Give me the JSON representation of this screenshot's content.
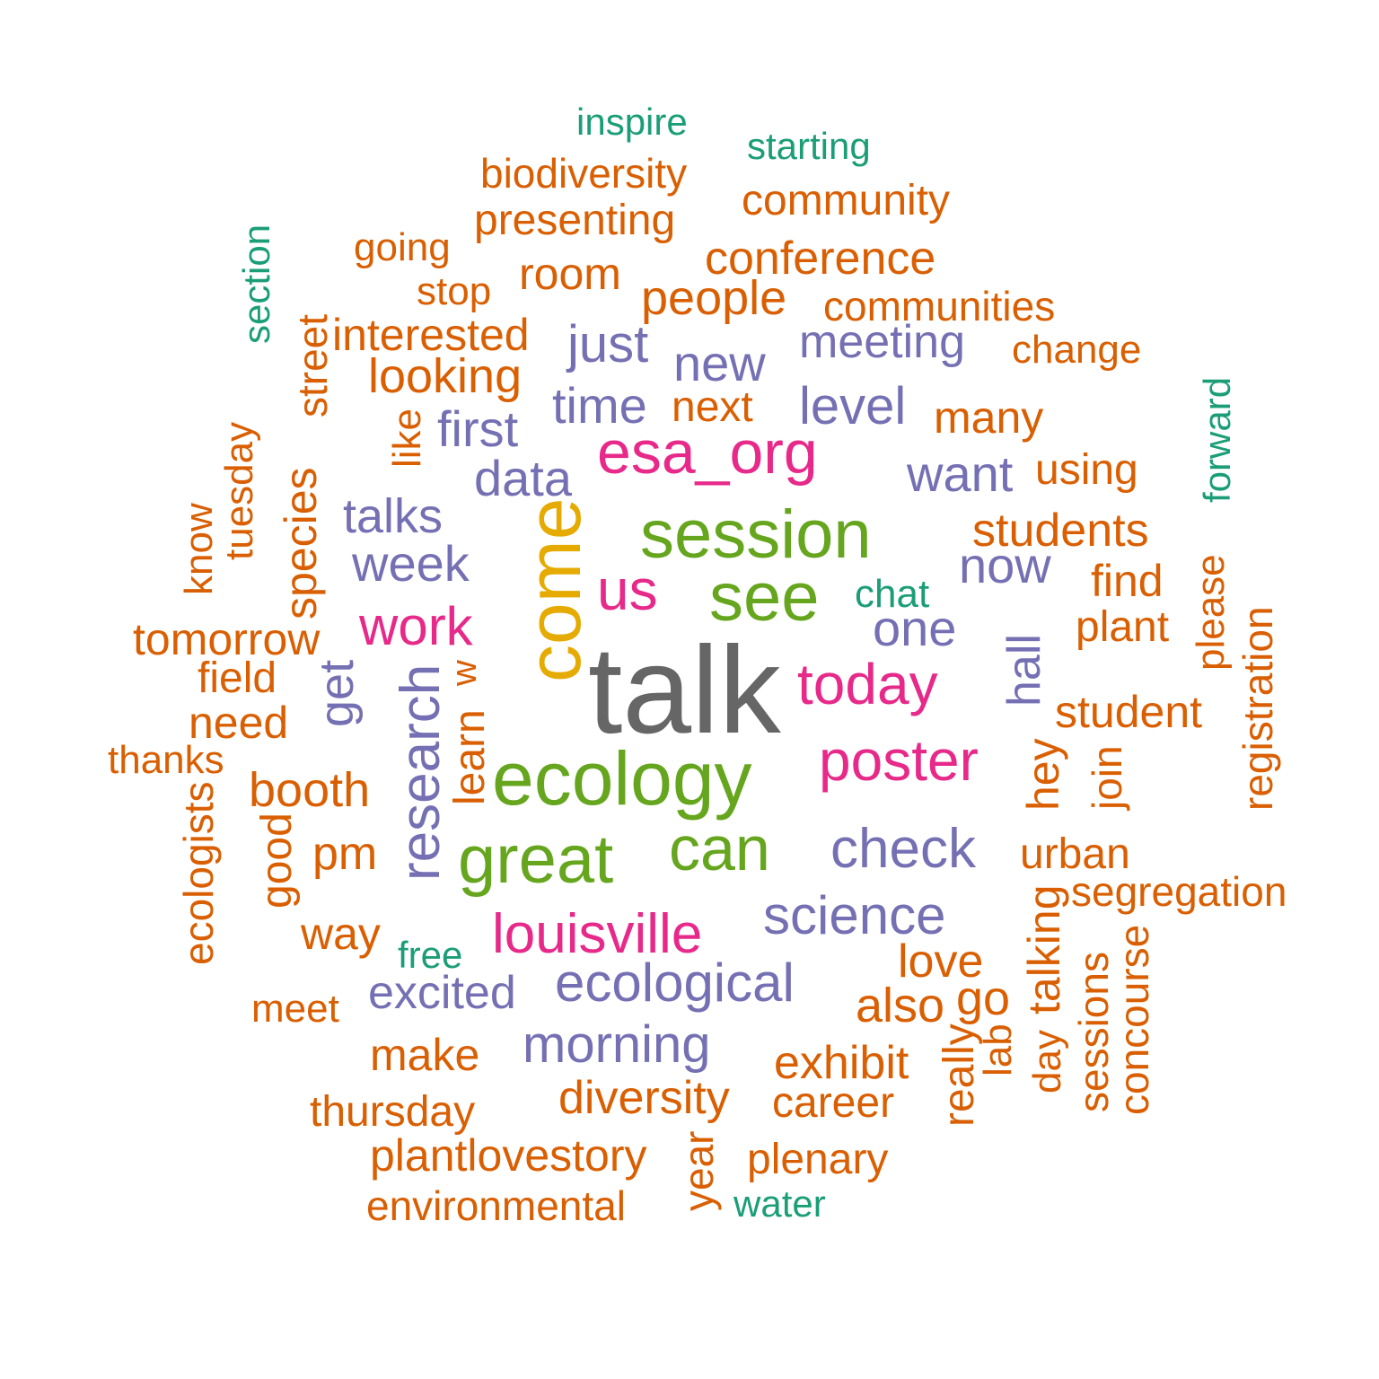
{
  "colors": {
    "grey": "#666666",
    "gold": "#E6AB02",
    "green": "#66A61E",
    "magenta": "#E7298A",
    "purple": "#7570B3",
    "orange": "#D95F02",
    "teal": "#1B9E77"
  },
  "words": [
    {
      "text": "talk",
      "color": "grey",
      "weight": 10
    },
    {
      "text": "come",
      "color": "gold",
      "weight": 9
    },
    {
      "text": "ecology",
      "color": "green",
      "weight": 8
    },
    {
      "text": "session",
      "color": "green",
      "weight": 7
    },
    {
      "text": "see",
      "color": "green",
      "weight": 7
    },
    {
      "text": "great",
      "color": "green",
      "weight": 7
    },
    {
      "text": "can",
      "color": "green",
      "weight": 7
    },
    {
      "text": "esa_org",
      "color": "magenta",
      "weight": 6
    },
    {
      "text": "us",
      "color": "magenta",
      "weight": 6
    },
    {
      "text": "today",
      "color": "magenta",
      "weight": 6
    },
    {
      "text": "poster",
      "color": "magenta",
      "weight": 6
    },
    {
      "text": "louisville",
      "color": "magenta",
      "weight": 6
    },
    {
      "text": "work",
      "color": "magenta",
      "weight": 6
    },
    {
      "text": "research",
      "color": "purple",
      "weight": 5
    },
    {
      "text": "check",
      "color": "purple",
      "weight": 5
    },
    {
      "text": "science",
      "color": "purple",
      "weight": 5
    },
    {
      "text": "ecological",
      "color": "purple",
      "weight": 5
    },
    {
      "text": "morning",
      "color": "purple",
      "weight": 5
    },
    {
      "text": "excited",
      "color": "purple",
      "weight": 5
    },
    {
      "text": "one",
      "color": "purple",
      "weight": 5
    },
    {
      "text": "meeting",
      "color": "purple",
      "weight": 5
    },
    {
      "text": "data",
      "color": "purple",
      "weight": 5
    },
    {
      "text": "week",
      "color": "purple",
      "weight": 5
    },
    {
      "text": "talks",
      "color": "purple",
      "weight": 5
    },
    {
      "text": "first",
      "color": "purple",
      "weight": 5
    },
    {
      "text": "time",
      "color": "purple",
      "weight": 5
    },
    {
      "text": "level",
      "color": "purple",
      "weight": 5
    },
    {
      "text": "new",
      "color": "purple",
      "weight": 5
    },
    {
      "text": "just",
      "color": "purple",
      "weight": 5
    },
    {
      "text": "want",
      "color": "purple",
      "weight": 5
    },
    {
      "text": "now",
      "color": "purple",
      "weight": 5
    },
    {
      "text": "get",
      "color": "purple",
      "weight": 5
    },
    {
      "text": "hall",
      "color": "purple",
      "weight": 5
    },
    {
      "text": "people",
      "color": "orange",
      "weight": 4
    },
    {
      "text": "conference",
      "color": "orange",
      "weight": 4
    },
    {
      "text": "community",
      "color": "orange",
      "weight": 4
    },
    {
      "text": "presenting",
      "color": "orange",
      "weight": 4
    },
    {
      "text": "biodiversity",
      "color": "orange",
      "weight": 4
    },
    {
      "text": "room",
      "color": "orange",
      "weight": 4
    },
    {
      "text": "looking",
      "color": "orange",
      "weight": 4
    },
    {
      "text": "interested",
      "color": "orange",
      "weight": 4
    },
    {
      "text": "stop",
      "color": "orange",
      "weight": 4
    },
    {
      "text": "going",
      "color": "orange",
      "weight": 4
    },
    {
      "text": "communities",
      "color": "orange",
      "weight": 4
    },
    {
      "text": "change",
      "color": "orange",
      "weight": 4
    },
    {
      "text": "many",
      "color": "orange",
      "weight": 4
    },
    {
      "text": "next",
      "color": "orange",
      "weight": 4
    },
    {
      "text": "using",
      "color": "orange",
      "weight": 4
    },
    {
      "text": "students",
      "color": "orange",
      "weight": 4
    },
    {
      "text": "find",
      "color": "orange",
      "weight": 4
    },
    {
      "text": "plant",
      "color": "orange",
      "weight": 4
    },
    {
      "text": "student",
      "color": "orange",
      "weight": 4
    },
    {
      "text": "urban",
      "color": "orange",
      "weight": 4
    },
    {
      "text": "segregation",
      "color": "orange",
      "weight": 4
    },
    {
      "text": "love",
      "color": "orange",
      "weight": 4
    },
    {
      "text": "also",
      "color": "orange",
      "weight": 4
    },
    {
      "text": "go",
      "color": "orange",
      "weight": 4
    },
    {
      "text": "exhibit",
      "color": "orange",
      "weight": 4
    },
    {
      "text": "career",
      "color": "orange",
      "weight": 4
    },
    {
      "text": "diversity",
      "color": "orange",
      "weight": 4
    },
    {
      "text": "plenary",
      "color": "orange",
      "weight": 4
    },
    {
      "text": "plantlovestory",
      "color": "orange",
      "weight": 4
    },
    {
      "text": "environmental",
      "color": "orange",
      "weight": 4
    },
    {
      "text": "thursday",
      "color": "orange",
      "weight": 4
    },
    {
      "text": "make",
      "color": "orange",
      "weight": 4
    },
    {
      "text": "meet",
      "color": "orange",
      "weight": 4
    },
    {
      "text": "way",
      "color": "orange",
      "weight": 4
    },
    {
      "text": "pm",
      "color": "orange",
      "weight": 4
    },
    {
      "text": "booth",
      "color": "orange",
      "weight": 4
    },
    {
      "text": "need",
      "color": "orange",
      "weight": 4
    },
    {
      "text": "field",
      "color": "orange",
      "weight": 4
    },
    {
      "text": "thanks",
      "color": "orange",
      "weight": 4
    },
    {
      "text": "tomorrow",
      "color": "orange",
      "weight": 4
    },
    {
      "text": "know",
      "color": "orange",
      "weight": 4
    },
    {
      "text": "tuesday",
      "color": "orange",
      "weight": 4
    },
    {
      "text": "species",
      "color": "orange",
      "weight": 4
    },
    {
      "text": "street",
      "color": "orange",
      "weight": 4
    },
    {
      "text": "like",
      "color": "orange",
      "weight": 4
    },
    {
      "text": "w",
      "color": "orange",
      "weight": 4
    },
    {
      "text": "learn",
      "color": "orange",
      "weight": 4
    },
    {
      "text": "good",
      "color": "orange",
      "weight": 4
    },
    {
      "text": "ecologists",
      "color": "orange",
      "weight": 4
    },
    {
      "text": "hey",
      "color": "orange",
      "weight": 4
    },
    {
      "text": "join",
      "color": "orange",
      "weight": 4
    },
    {
      "text": "please",
      "color": "orange",
      "weight": 4
    },
    {
      "text": "registration",
      "color": "orange",
      "weight": 4
    },
    {
      "text": "talking",
      "color": "orange",
      "weight": 4
    },
    {
      "text": "day",
      "color": "orange",
      "weight": 4
    },
    {
      "text": "sessions",
      "color": "orange",
      "weight": 4
    },
    {
      "text": "concourse",
      "color": "orange",
      "weight": 4
    },
    {
      "text": "really",
      "color": "orange",
      "weight": 4
    },
    {
      "text": "lab",
      "color": "orange",
      "weight": 4
    },
    {
      "text": "year",
      "color": "orange",
      "weight": 4
    },
    {
      "text": "inspire",
      "color": "teal",
      "weight": 3
    },
    {
      "text": "starting",
      "color": "teal",
      "weight": 3
    },
    {
      "text": "section",
      "color": "teal",
      "weight": 3
    },
    {
      "text": "forward",
      "color": "teal",
      "weight": 3
    },
    {
      "text": "chat",
      "color": "teal",
      "weight": 3
    },
    {
      "text": "free",
      "color": "teal",
      "weight": 3
    },
    {
      "text": "water",
      "color": "teal",
      "weight": 3
    }
  ]
}
